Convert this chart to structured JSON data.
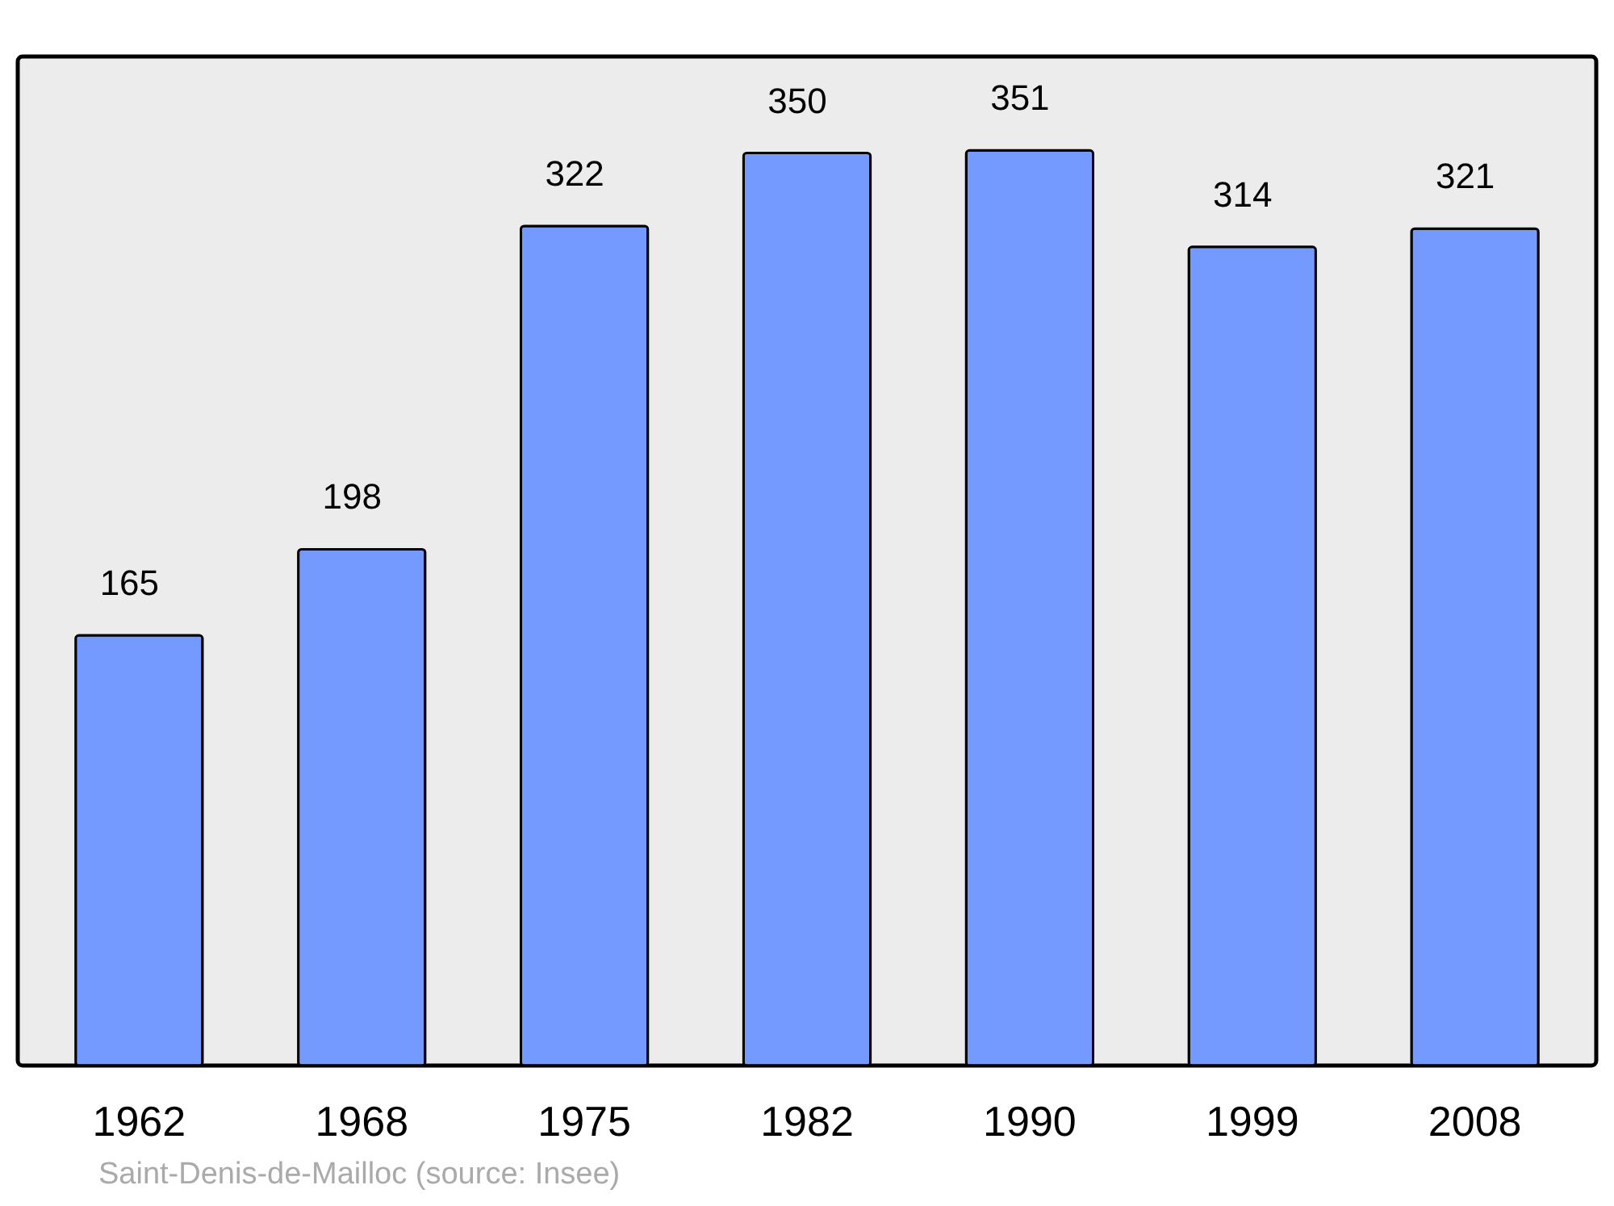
{
  "chart_data": {
    "type": "bar",
    "categories": [
      "1962",
      "1968",
      "1975",
      "1982",
      "1990",
      "1999",
      "2008"
    ],
    "values": [
      165,
      198,
      322,
      350,
      351,
      314,
      321
    ],
    "color": "#7499ff",
    "ylim": [
      0,
      387
    ],
    "tick_labels": "x",
    "data_labels": true,
    "annotations": [
      "Saint-Denis-de-Mailloc    (source: Insee)"
    ]
  }
}
